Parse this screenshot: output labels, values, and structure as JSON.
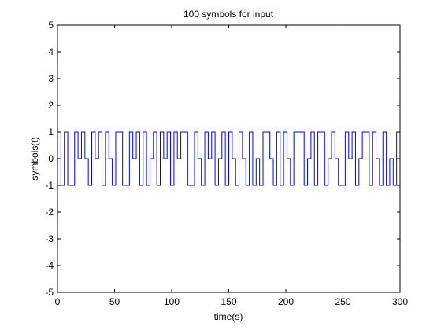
{
  "chart_data": {
    "type": "line",
    "title": "100 symbols for input",
    "xlabel": "time(s)",
    "ylabel": "symbols(t)",
    "xlim": [
      0,
      300
    ],
    "ylim": [
      -5,
      5
    ],
    "xticks": [
      0,
      50,
      100,
      150,
      200,
      250,
      300
    ],
    "yticks": [
      -5,
      -4,
      -3,
      -2,
      -1,
      0,
      1,
      2,
      3,
      4,
      5
    ],
    "grid": false,
    "line_color": "#0000ff",
    "step": true,
    "series": [
      {
        "x": [
          0,
          3,
          6,
          9,
          12,
          15,
          18,
          21,
          24,
          27,
          30,
          33,
          36,
          39,
          42,
          45,
          48,
          51,
          54,
          57,
          60,
          63,
          66,
          69,
          72,
          75,
          78,
          81,
          84,
          87,
          90,
          93,
          96,
          99,
          102,
          105,
          108,
          111,
          114,
          117,
          120,
          123,
          126,
          129,
          132,
          135,
          138,
          141,
          144,
          147,
          150,
          153,
          156,
          159,
          162,
          165,
          168,
          171,
          174,
          177,
          180,
          183,
          186,
          189,
          192,
          195,
          198,
          201,
          204,
          207,
          210,
          213,
          216,
          219,
          222,
          225,
          228,
          231,
          234,
          237,
          240,
          243,
          246,
          249,
          252,
          255,
          258,
          261,
          264,
          267,
          270,
          273,
          276,
          279,
          282,
          285,
          288,
          291,
          294,
          297,
          300
        ],
        "values": [
          1,
          -1,
          1,
          -1,
          -1,
          1,
          0,
          1,
          0,
          -1,
          1,
          0,
          1,
          -1,
          1,
          0,
          -1,
          1,
          1,
          -1,
          -1,
          1,
          0,
          1,
          -1,
          1,
          -1,
          0,
          1,
          -1,
          1,
          0,
          1,
          -1,
          1,
          0,
          1,
          1,
          -1,
          -1,
          1,
          0,
          -1,
          1,
          0,
          1,
          -1,
          0,
          1,
          -1,
          1,
          0,
          -1,
          1,
          0,
          -1,
          1,
          -1,
          0,
          -1,
          1,
          1,
          0,
          -1,
          1,
          -1,
          1,
          0,
          -1,
          1,
          1,
          1,
          -1,
          0,
          1,
          -1,
          1,
          1,
          -1,
          0,
          1,
          0,
          -1,
          -1,
          1,
          0,
          1,
          -1,
          0,
          1,
          1,
          -1,
          1,
          0,
          -1,
          1,
          -1,
          0,
          -1,
          1,
          1
        ]
      }
    ]
  }
}
